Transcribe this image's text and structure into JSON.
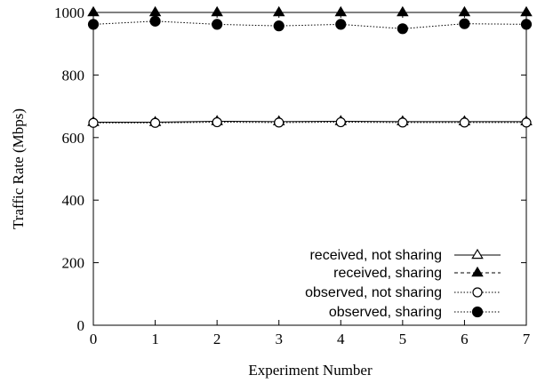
{
  "chart_data": {
    "type": "line",
    "title": "",
    "xlabel": "Experiment Number",
    "ylabel": "Traffic Rate (Mbps)",
    "xlim": [
      0,
      7
    ],
    "ylim": [
      0,
      1000
    ],
    "x": [
      0,
      1,
      2,
      3,
      4,
      5,
      6,
      7
    ],
    "x_ticks": [
      "0",
      "1",
      "2",
      "3",
      "4",
      "5",
      "6",
      "7"
    ],
    "y_ticks": [
      "0",
      "200",
      "400",
      "600",
      "800",
      "1000"
    ],
    "grid": false,
    "legend_position": "bottom-right",
    "series": [
      {
        "name": "received, not sharing",
        "values": [
          649,
          649,
          652,
          651,
          652,
          651,
          651,
          651
        ],
        "marker": "open-triangle",
        "line": "solid",
        "color": "#000000"
      },
      {
        "name": "received, sharing",
        "values": [
          1000,
          1000,
          1000,
          1000,
          1000,
          1000,
          1000,
          1000
        ],
        "marker": "filled-triangle",
        "line": "dashed",
        "color": "#000000"
      },
      {
        "name": "observed, not sharing",
        "values": [
          647,
          647,
          649,
          648,
          649,
          648,
          648,
          648
        ],
        "marker": "open-circle",
        "line": "dotted",
        "color": "#000000"
      },
      {
        "name": "observed, sharing",
        "values": [
          962,
          972,
          962,
          957,
          962,
          948,
          964,
          962
        ],
        "marker": "filled-circle",
        "line": "dotted",
        "color": "#000000"
      }
    ]
  }
}
